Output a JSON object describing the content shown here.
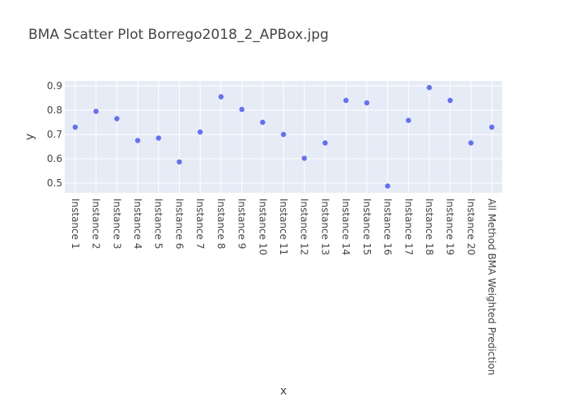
{
  "chart_data": {
    "type": "scatter",
    "title": "BMA Scatter Plot Borrego2018_2_APBox.jpg",
    "xlabel": "x",
    "ylabel": "y",
    "ylim": [
      0.46,
      0.92
    ],
    "yticks": [
      "0.5",
      "0.6",
      "0.7",
      "0.8",
      "0.9"
    ],
    "grid": true,
    "legend": "none",
    "marker_color": "#636efa",
    "plot_bg": "#e5ecf6",
    "categories": [
      "Instance 1",
      "Instance 2",
      "Instance 3",
      "Instance 4",
      "Instance 5",
      "Instance 6",
      "Instance 7",
      "Instance 8",
      "Instance 9",
      "Instance 10",
      "Instance 11",
      "Instance 12",
      "Instance 13",
      "Instance 14",
      "Instance 15",
      "Instance 16",
      "Instance 17",
      "Instance 18",
      "Instance 19",
      "Instance 20",
      "All Method BMA Weighted Prediction"
    ],
    "values": [
      0.73,
      0.795,
      0.765,
      0.675,
      0.685,
      0.587,
      0.71,
      0.855,
      0.803,
      0.75,
      0.7,
      0.602,
      0.665,
      0.84,
      0.83,
      0.488,
      0.758,
      0.893,
      0.84,
      0.665,
      0.73
    ]
  }
}
